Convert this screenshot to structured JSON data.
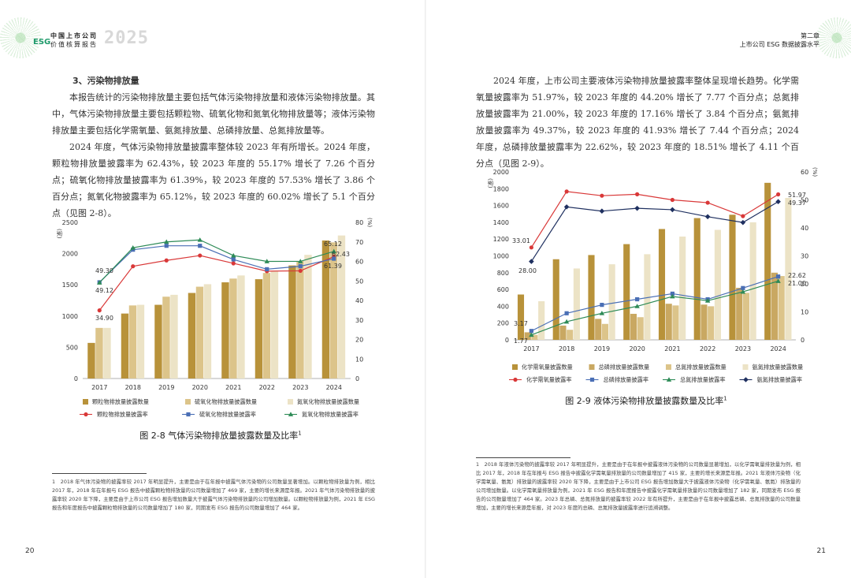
{
  "left": {
    "header": {
      "brand_line1": "中国上市公司",
      "brand_line2": "价值核算报告",
      "esg": "ESG",
      "year": "2025"
    },
    "section_title": "3、污染物排放量",
    "paragraphs": [
      "本报告统计的污染物排放量主要包括气体污染物排放量和液体污染物排放量。其中，气体污染物排放量主要包括颗粒物、硫氧化物和氮氧化物排放量等；液体污染物排放量主要包括化学需氧量、氨氮排放量、总磷排放量、总氮排放量等。",
      "2024 年度，气体污染物排放量披露率整体较 2023 年有所增长。2024 年度，颗粒物排放量披露率为 62.43%，较 2023 年度的 55.17% 增长了 7.26 个百分点；硫氧化物排放量披露率为 61.39%，较 2023 年度的 57.53% 增长了 3.86 个百分点；氮氧化物披露率为 65.12%，较 2023 年度的 60.02% 增长了 5.1 个百分点（见图 2-8）。"
    ],
    "caption": "图 2-8 气体污染物排放量披露数量及比率",
    "caption_sup": "1",
    "footnote": "1　2018 年气体污染物的披露率较 2017 年明显提升，主要是由于在年报中披露气体污染物的公司数量显著增加。以颗粒物排放量为例，相比 2017 年，2018 年在年报与 ESG 报告中披露颗粒物排放量的公司数量增加了 469 家，主要的增长来源是年报。2021 年气体污染物排放量的披露率较 2020 年下降，主要是由于上市公司 ESG 报告增加数量大于披露气体污染物排放量的公司增加数量。以颗粒物排放量为例，2021 年 ESG 报告和年度报告中披露颗粒物排放量的公司数量增加了 180 家，同期发布 ESG 报告的公司数量增加了 464 家。",
    "page_number": "20"
  },
  "right": {
    "header": {
      "chapter": "第二章",
      "subtitle": "上市公司 ESG 数据披露水平"
    },
    "paragraphs": [
      "2024 年度，上市公司主要液体污染物排放量披露率整体呈现增长趋势。化学需氧量披露率为 51.97%，较 2023 年度的 44.20% 增长了 7.77 个百分点；总氮排放量披露率为 21.00%，较 2023 年度的 17.16% 增长了 3.84 个百分点；氨氮排放量披露率为 49.37%，较 2023 年度的 41.93% 增长了 7.44 个百分点；2024 年度，总磷排放量披露率为 22.62%，较 2023 年度的 18.51% 增长了 4.11 个百分点（见图 2-9）。"
    ],
    "caption": "图 2-9 液体污染物排放量披露数量及比率",
    "caption_sup": "1",
    "footnote": "1　2018 年液体污染物的披露率较 2017 年明显提升，主要是由于在年报中披露液体污染物的公司数量显著增加，以化学需氧量排放量为例，相比 2017 年，2018 年在年报与 ESG 报告中披露化学需氧量排放量的公司数量增加了 415 家，主要的增长来源是年报。2021 年液体污染物（化学需氧量、氨氮）排放量的披露率较 2020 年下降，主要是由于上市公司 ESG 报告增加数量大于披露液体污染物（化学需氧量、氨氮）排放量的公司增加数量。以化学需氧量排放量为例，2021 年 ESG 报告和年度报告中披露化学需氧量排放量的公司数量增加了 182 家，同期发布 ESG 报告的公司数量增加了 464 家。2023 年总磷、总氮排放量的披露率较 2022 年有所提升，主要是由于在年报中披露总磷、总氮排放量的公司数量增加，主要的增长来源是年报，对 2023 年度的总磷、总氮排放量披露率进行追溯调整。",
    "page_number": "21"
  },
  "chart_data": [
    {
      "type": "bar",
      "title": "图 2-8 气体污染物排放量披露数量及比率",
      "categories": [
        "2017",
        "2018",
        "2019",
        "2020",
        "2021",
        "2022",
        "2023",
        "2024"
      ],
      "ylabel_left": "(家)",
      "ylabel_right": "(%)",
      "ylim_left": [
        0,
        2500
      ],
      "ylim_right": [
        0,
        80
      ],
      "yticks_left": [
        "0",
        "500",
        "1000",
        "1500",
        "2000",
        "2500"
      ],
      "yticks_right": [
        "0",
        "10",
        "20",
        "30",
        "40",
        "50",
        "60",
        "70",
        "80"
      ],
      "bar_series": [
        {
          "name": "颗粒物排放量披露数量",
          "color": "#b8923a",
          "values": [
            570,
            1040,
            1180,
            1370,
            1540,
            1590,
            1810,
            2210
          ]
        },
        {
          "name": "硫氧化物排放量披露数量",
          "color": "#dcc48a",
          "values": [
            810,
            1170,
            1310,
            1470,
            1600,
            1690,
            1880,
            2180
          ]
        },
        {
          "name": "氮氧化物排放量披露数量",
          "color": "#ece3c6",
          "values": [
            810,
            1180,
            1340,
            1510,
            1650,
            1720,
            1980,
            2290
          ]
        }
      ],
      "line_series": [
        {
          "name": "颗粒物排放量披露率",
          "color": "#d93838",
          "marker": "circle",
          "values": [
            34.9,
            57.5,
            60.5,
            63.0,
            59.0,
            55.0,
            55.17,
            62.43
          ]
        },
        {
          "name": "硫氧化物排放量披露率",
          "color": "#4a6fb5",
          "marker": "square",
          "values": [
            49.3,
            66.0,
            68.0,
            68.0,
            61.0,
            56.0,
            57.53,
            61.39
          ]
        },
        {
          "name": "氮氧化物排放量披露率",
          "color": "#2e8b57",
          "marker": "triangle",
          "values": [
            49.12,
            67.0,
            70.0,
            71.0,
            63.0,
            60.0,
            60.02,
            65.12
          ]
        }
      ],
      "data_labels": [
        "34.90",
        "49.30",
        "49.12",
        "65.12",
        "62.43",
        "61.39"
      ]
    },
    {
      "type": "bar",
      "title": "图 2-9 液体污染物排放量披露数量及比率",
      "categories": [
        "2017",
        "2018",
        "2019",
        "2020",
        "2021",
        "2022",
        "2023",
        "2024"
      ],
      "ylabel_left": "(家)",
      "ylabel_right": "(%)",
      "ylim_left": [
        0,
        2000
      ],
      "ylim_right": [
        0,
        60
      ],
      "yticks_left": [
        "0",
        "200",
        "400",
        "600",
        "800",
        "1000",
        "1200",
        "1400",
        "1600",
        "1800",
        "2000"
      ],
      "yticks_right": [
        "0",
        "10",
        "20",
        "30",
        "40",
        "50",
        "60"
      ],
      "bar_series": [
        {
          "name": "化学需氧量披露数量",
          "color": "#b8923a",
          "values": [
            540,
            960,
            1010,
            1140,
            1320,
            1450,
            1490,
            1870
          ]
        },
        {
          "name": "总磷排放量披露数量",
          "color": "#c9a862",
          "values": [
            90,
            170,
            250,
            310,
            430,
            420,
            620,
            800
          ]
        },
        {
          "name": "总氮排放量披露数量",
          "color": "#dcc48a",
          "values": [
            60,
            120,
            190,
            270,
            410,
            400,
            560,
            760
          ]
        },
        {
          "name": "氨氮排放量披露数量",
          "color": "#ece3c6",
          "values": [
            460,
            850,
            900,
            1020,
            1230,
            1310,
            1400,
            1690
          ]
        }
      ],
      "line_series": [
        {
          "name": "化学需氧量披露率",
          "color": "#d93838",
          "marker": "circle",
          "values": [
            33.01,
            53.0,
            51.5,
            52.0,
            50.0,
            49.0,
            44.2,
            51.97
          ]
        },
        {
          "name": "总磷排放量披露率",
          "color": "#4a6fb5",
          "marker": "square",
          "values": [
            3.17,
            9.5,
            12.5,
            14.5,
            16.5,
            14.5,
            18.51,
            22.62
          ]
        },
        {
          "name": "总氮排放量披露率",
          "color": "#2e8b57",
          "marker": "triangle",
          "values": [
            1.77,
            6.5,
            9.5,
            12.0,
            15.5,
            14.0,
            17.16,
            21.0
          ]
        },
        {
          "name": "氨氮排放量披露率",
          "color": "#1f3060",
          "marker": "diamond",
          "values": [
            28.0,
            47.5,
            46.0,
            47.0,
            46.5,
            44.0,
            41.93,
            49.37
          ]
        }
      ],
      "data_labels": [
        "33.01",
        "28.00",
        "3.17",
        "1.77",
        "51.97",
        "49.37",
        "22.62",
        "21.00"
      ]
    }
  ]
}
